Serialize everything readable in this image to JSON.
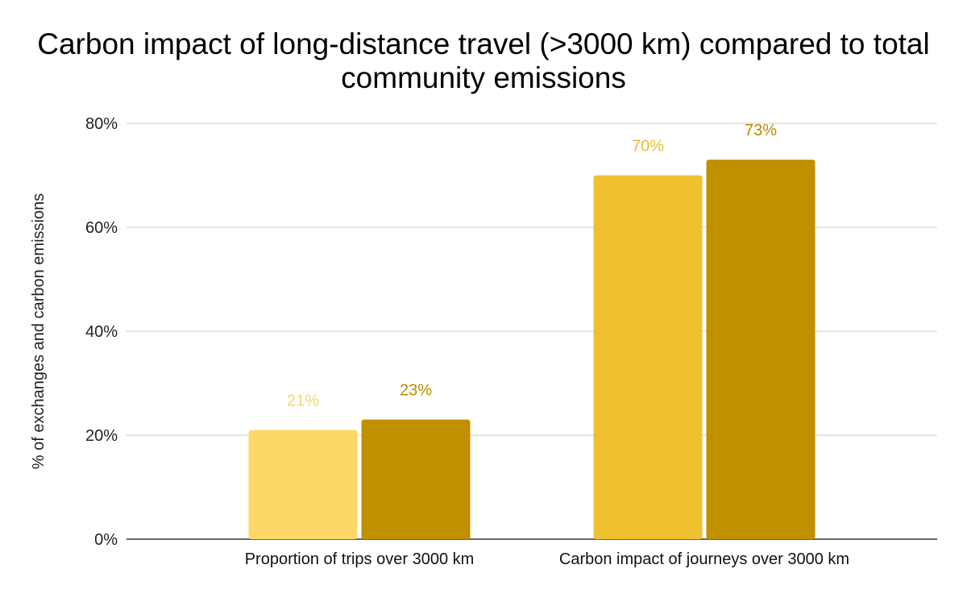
{
  "chart_data": {
    "type": "bar",
    "title": "Carbon impact of long-distance travel (>3000 km) compared to total community emissions",
    "xlabel": "",
    "ylabel": "% of exchanges and carbon emissions",
    "categories": [
      "Proportion of trips over 3000 km",
      "Carbon impact of journeys over 3000 km"
    ],
    "series": [
      {
        "values": [
          21,
          70
        ],
        "labels": [
          "21%",
          "70%"
        ],
        "colors": [
          "#fdd868",
          "#efc030"
        ],
        "label_colors": [
          "#f7d56a",
          "#ebbd32"
        ]
      },
      {
        "values": [
          23,
          73
        ],
        "labels": [
          "23%",
          "73%"
        ],
        "colors": [
          "#c09000",
          "#c09000"
        ],
        "label_colors": [
          "#b98b00",
          "#b98b00"
        ]
      }
    ],
    "ylim": [
      0,
      80
    ],
    "yticks": [
      0,
      20,
      40,
      60,
      80
    ],
    "ytick_labels": [
      "0%",
      "20%",
      "40%",
      "60%",
      "80%"
    ],
    "grid": true,
    "legend": "none"
  }
}
